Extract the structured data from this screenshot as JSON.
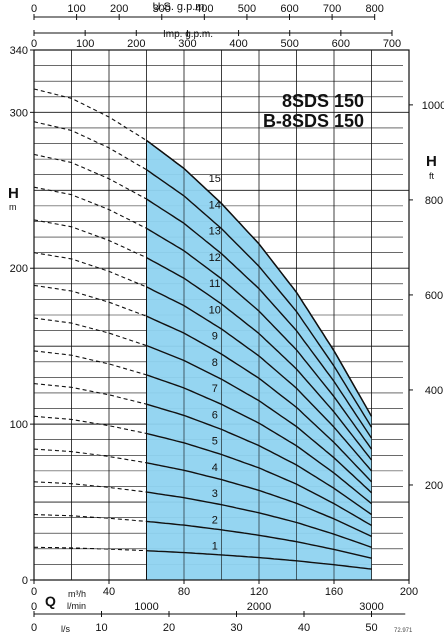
{
  "chart_data": {
    "type": "line",
    "title": "8SDS 150",
    "subtitle": "B-8SDS 150",
    "head_label_left": "H",
    "head_unit_left": "m",
    "head_label_right": "H",
    "head_unit_right": "ft",
    "top_axis_1_label": "U.S. g.p.m.",
    "top_axis_1_ticks": [
      "0",
      "100",
      "200",
      "300",
      "400",
      "500",
      "600",
      "700",
      "800"
    ],
    "top_axis_2_label": "Imp. g.p.m.",
    "top_axis_2_ticks": [
      "0",
      "100",
      "200",
      "300",
      "400",
      "500",
      "600",
      "700"
    ],
    "left_axis_ticks": [
      "0",
      "100",
      "200",
      "300",
      "340"
    ],
    "right_axis_ticks": [
      "200",
      "400",
      "600",
      "800",
      "1000"
    ],
    "bottom_q_label": "Q",
    "bottom_unit_m3h": "m³/h",
    "bottom_unit_lmin": "l/min",
    "bottom_unit_ls": "l/s",
    "bottom_m3h_ticks": [
      "0",
      "40",
      "80",
      "120",
      "160",
      "200"
    ],
    "bottom_lmin_ticks": [
      "0",
      "1000",
      "2000",
      "3000"
    ],
    "bottom_ls_ticks": [
      "0",
      "10",
      "20",
      "30",
      "40",
      "50"
    ],
    "figure_code": "72.971",
    "xlim_m3h": [
      0,
      200
    ],
    "ylim_m": [
      0,
      340
    ],
    "operating_range_m3h": [
      60,
      180
    ],
    "shading_color": "#8fd3f0",
    "grid": true,
    "x_m3h": [
      0,
      20,
      40,
      60,
      80,
      100,
      120,
      140,
      160,
      180
    ],
    "series": [
      {
        "name": "1",
        "values": [
          21,
          20.6,
          19.8,
          18.8,
          17.6,
          16.1,
          14.4,
          12.3,
          9.8,
          7.0
        ]
      },
      {
        "name": "2",
        "values": [
          42,
          41.2,
          39.6,
          37.6,
          35.2,
          32.2,
          28.7,
          24.6,
          19.6,
          14.0
        ]
      },
      {
        "name": "3",
        "values": [
          63,
          61.8,
          59.4,
          56.4,
          52.8,
          48.3,
          43.1,
          36.9,
          29.4,
          21.0
        ]
      },
      {
        "name": "4",
        "values": [
          84,
          82.4,
          79.2,
          75.2,
          70.4,
          64.4,
          57.5,
          49.2,
          39.2,
          28.0
        ]
      },
      {
        "name": "5",
        "values": [
          105,
          103,
          99,
          94,
          88,
          80.5,
          71.9,
          61.5,
          49,
          35
        ]
      },
      {
        "name": "6",
        "values": [
          126,
          123.6,
          118.8,
          112.8,
          105.6,
          96.6,
          86.2,
          73.8,
          58.8,
          42
        ]
      },
      {
        "name": "7",
        "values": [
          147,
          144.2,
          138.6,
          131.6,
          123.2,
          112.7,
          100.6,
          86.1,
          68.6,
          49
        ]
      },
      {
        "name": "8",
        "values": [
          168,
          164.8,
          158.4,
          150.4,
          140.8,
          128.8,
          115,
          98.4,
          78.4,
          56
        ]
      },
      {
        "name": "9",
        "values": [
          189,
          185.4,
          178.2,
          169.2,
          158.4,
          144.9,
          129.4,
          110.7,
          88.2,
          63
        ]
      },
      {
        "name": "10",
        "values": [
          210,
          206,
          198,
          188,
          176,
          161,
          143.7,
          123,
          98,
          70
        ]
      },
      {
        "name": "11",
        "values": [
          231,
          226.6,
          217.8,
          206.8,
          193.6,
          177.1,
          158.1,
          135.3,
          107.8,
          77
        ]
      },
      {
        "name": "12",
        "values": [
          252,
          247.2,
          237.6,
          225.6,
          211.2,
          193.2,
          172.5,
          147.6,
          117.6,
          84
        ]
      },
      {
        "name": "13",
        "values": [
          273,
          267.8,
          257.4,
          244.4,
          228.8,
          209.3,
          186.9,
          159.9,
          127.4,
          91
        ]
      },
      {
        "name": "14",
        "values": [
          294,
          288.4,
          277.2,
          263.2,
          246.4,
          225.4,
          201.2,
          172.2,
          137.2,
          98
        ]
      },
      {
        "name": "15",
        "values": [
          315,
          309,
          297,
          282,
          264,
          241.5,
          215.6,
          184.5,
          147,
          105
        ]
      }
    ]
  }
}
